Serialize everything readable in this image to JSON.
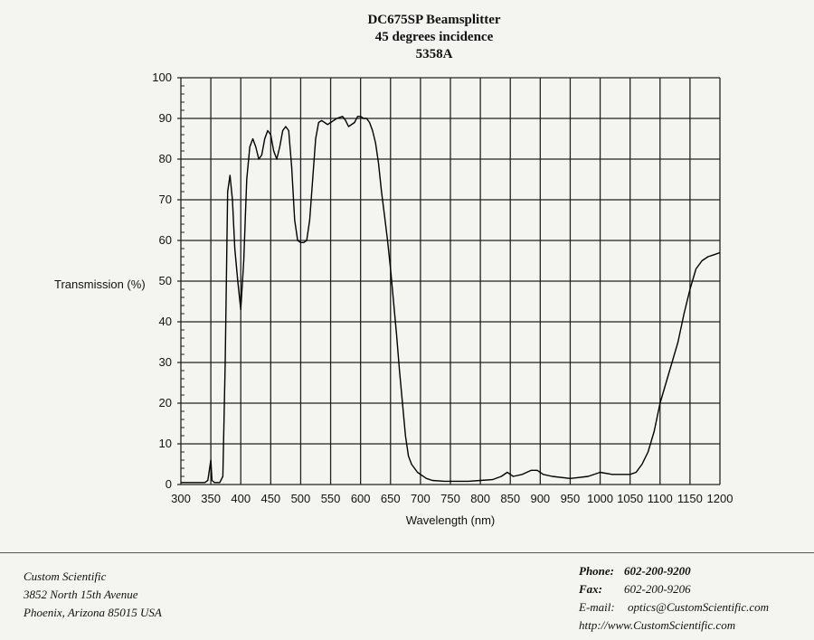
{
  "title_lines": [
    "DC675SP Beamsplitter",
    "45 degrees incidence",
    "5358A"
  ],
  "chart_data": {
    "type": "line",
    "title": "DC675SP Beamsplitter 45 degrees incidence 5358A",
    "xlabel": "Wavelength (nm)",
    "ylabel": "Transmission (%)",
    "xlim": [
      300,
      1200
    ],
    "ylim": [
      0,
      100
    ],
    "xticks": [
      300,
      350,
      400,
      450,
      500,
      550,
      600,
      650,
      700,
      750,
      800,
      850,
      900,
      950,
      1000,
      1050,
      1100,
      1150,
      1200
    ],
    "yticks": [
      0,
      10,
      20,
      30,
      40,
      50,
      60,
      70,
      80,
      90,
      100
    ],
    "grid": true,
    "series": [
      {
        "x": [
          300,
          320,
          340,
          345,
          350,
          352,
          356,
          365,
          370,
          374,
          378,
          382,
          386,
          390,
          395,
          400,
          405,
          410,
          415,
          420,
          425,
          430,
          435,
          440,
          445,
          450,
          455,
          460,
          465,
          470,
          475,
          480,
          485,
          490,
          495,
          500,
          505,
          510,
          515,
          520,
          525,
          530,
          535,
          540,
          545,
          550,
          555,
          560,
          570,
          575,
          580,
          590,
          595,
          600,
          605,
          610,
          615,
          620,
          625,
          630,
          635,
          640,
          645,
          650,
          655,
          660,
          665,
          670,
          675,
          680,
          685,
          690,
          695,
          700,
          710,
          720,
          740,
          760,
          780,
          800,
          820,
          835,
          845,
          855,
          870,
          885,
          895,
          905,
          920,
          950,
          980,
          1000,
          1020,
          1050,
          1060,
          1070,
          1080,
          1090,
          1100,
          1110,
          1120,
          1130,
          1140,
          1150,
          1160,
          1170,
          1180,
          1190,
          1200
        ],
        "y": [
          0.5,
          0.5,
          0.5,
          1,
          6,
          1,
          0.5,
          0.5,
          2,
          30,
          72,
          76,
          70,
          58,
          50,
          43,
          55,
          75,
          83,
          85,
          83,
          80,
          81,
          85,
          87,
          86,
          82,
          80,
          83,
          87,
          88,
          87,
          78,
          65,
          60,
          59.5,
          59.5,
          60,
          65,
          75,
          85,
          89,
          89.5,
          89,
          88.5,
          89,
          89.5,
          90,
          90.5,
          89.5,
          88,
          89,
          90.5,
          90.5,
          90,
          90,
          89,
          87,
          84,
          79,
          72,
          66,
          60,
          53,
          45,
          37,
          28,
          20,
          12,
          7,
          5,
          4,
          3,
          2.5,
          1.5,
          1,
          0.8,
          0.8,
          0.8,
          1,
          1.2,
          2,
          3,
          2,
          2.5,
          3.5,
          3.5,
          2.5,
          2,
          1.5,
          2,
          3,
          2.5,
          2.5,
          3,
          5,
          8,
          13,
          20,
          25,
          30,
          35,
          42,
          48,
          53,
          55,
          56,
          56.5,
          57
        ]
      }
    ]
  },
  "footer": {
    "company": "Custom Scientific",
    "address1": "3852 North 15th Avenue",
    "address2": "Phoenix, Arizona 85015 USA",
    "phone_label": "Phone:",
    "phone_value": "602-200-9200",
    "fax_label": "Fax:",
    "fax_value": "602-200-9206",
    "email_label": "E-mail:",
    "email_value": "optics@CustomScientific.com",
    "url": "http://www.CustomScientific.com"
  }
}
